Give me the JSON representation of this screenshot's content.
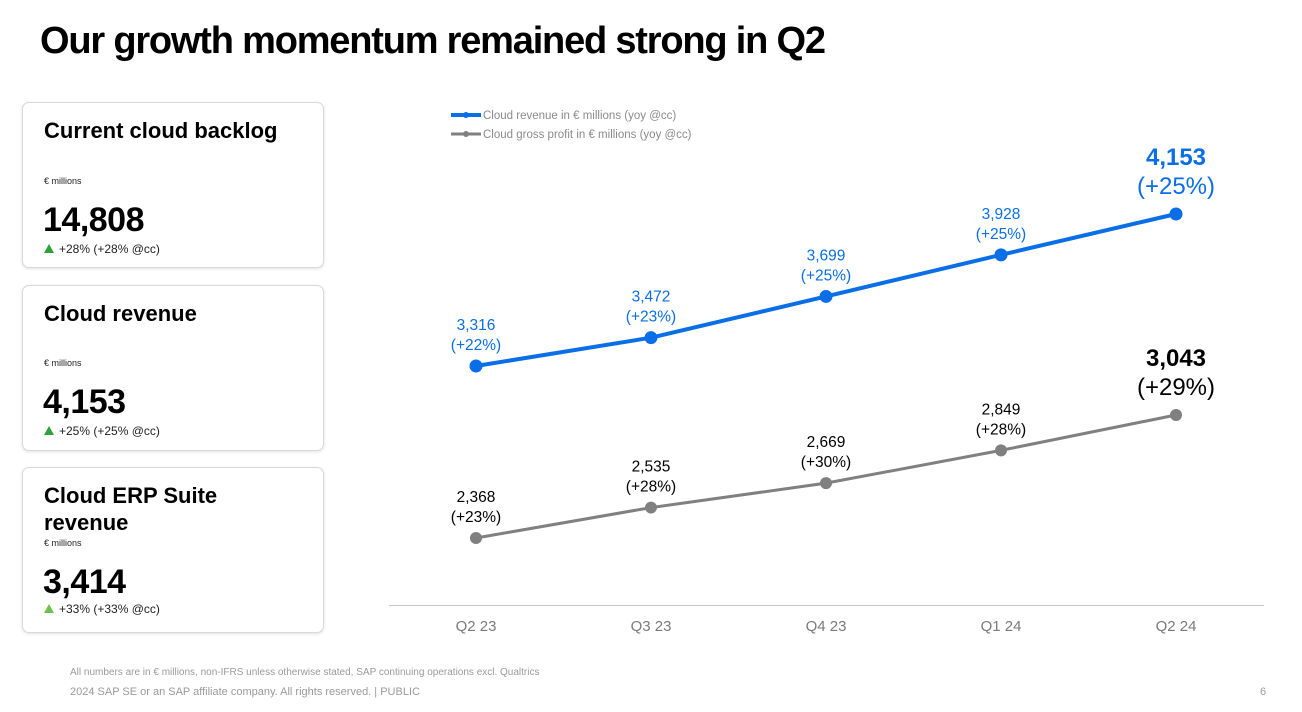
{
  "title": "Our growth momentum remained strong in Q2",
  "kpis": [
    {
      "title": "Current cloud backlog",
      "unit": "€ millions",
      "value": "14,808",
      "change": "+28% (+28% @cc)",
      "arrow_color": "#2ba23a"
    },
    {
      "title": "Cloud revenue",
      "unit": "€ millions",
      "value": "4,153",
      "change": "+25% (+25% @cc)",
      "arrow_color": "#2ba23a"
    },
    {
      "title": "Cloud ERP Suite revenue",
      "unit": "€ millions",
      "value": "3,414",
      "change": "+33% (+33% @cc)",
      "arrow_color": "#6cc24a"
    }
  ],
  "chart_data": {
    "type": "line",
    "categories": [
      "Q2 23",
      "Q3 23",
      "Q4 23",
      "Q1 24",
      "Q2 24"
    ],
    "series": [
      {
        "name": "Cloud revenue in € millions (yoy @cc)",
        "color": "#0a6ee6",
        "values": [
          3316,
          3472,
          3699,
          3928,
          4153
        ],
        "labels": [
          "3,316",
          "3,472",
          "3,699",
          "3,928",
          "4,153"
        ],
        "growth": [
          "(+22%)",
          "(+23%)",
          "(+25%)",
          "(+25%)",
          "(+25%)"
        ]
      },
      {
        "name": "Cloud gross profit in € millions (yoy @cc)",
        "color": "#808080",
        "values": [
          2368,
          2535,
          2669,
          2849,
          3043
        ],
        "labels": [
          "2,368",
          "2,535",
          "2,669",
          "2,849",
          "3,043"
        ],
        "growth": [
          "(+23%)",
          "(+28%)",
          "(+30%)",
          "(+28%)",
          "(+29%)"
        ]
      }
    ],
    "legend": "top-left",
    "grid": false
  },
  "footer": {
    "note": "All numbers are in € millions, non-IFRS unless otherwise stated, SAP continuing operations excl. Qualtrics",
    "copyright": "2024 SAP SE or an SAP affiliate company. All rights reserved.  | PUBLIC",
    "page": "6"
  }
}
